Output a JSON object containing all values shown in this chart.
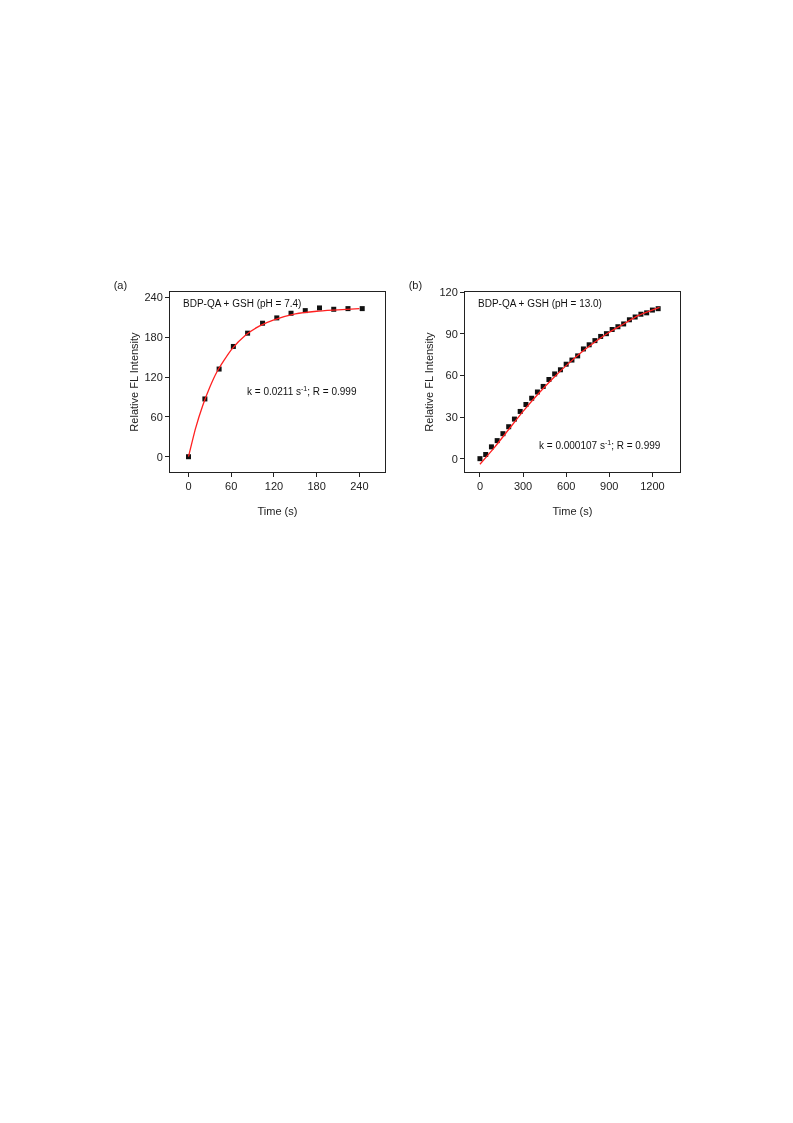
{
  "chart_data": [
    {
      "type": "scatter",
      "title": "(a)",
      "xlabel": "Time (s)",
      "ylabel": "Relative FL Intensity",
      "xlim": [
        -26,
        276
      ],
      "xticks": [
        0,
        60,
        120,
        180,
        240
      ],
      "ylim": [
        -23,
        248
      ],
      "yticks": [
        0,
        60,
        120,
        180,
        240
      ],
      "annotations": [
        "BDP-QA + GSH (pH = 7.4)",
        "k = 0.0211 s$^{-1}$; R = 0.999"
      ],
      "series": [
        {
          "type": "scatter",
          "marker": "square",
          "color": "#111111",
          "x": [
            0,
            23,
            43,
            63,
            83,
            104,
            124,
            144,
            164,
            184,
            204,
            224,
            244
          ],
          "values": [
            0,
            87,
            132,
            166,
            186,
            201,
            209,
            216,
            220,
            224,
            222,
            223,
            223
          ]
        },
        {
          "type": "line",
          "marker": "none",
          "color": "#ff2020",
          "x": [
            0,
            10,
            20,
            30,
            40,
            60,
            80,
            100,
            120,
            150,
            180,
            210,
            240
          ],
          "values": [
            0,
            43,
            77,
            105,
            128,
            161,
            183,
            197,
            206,
            215,
            219,
            221,
            223
          ]
        }
      ]
    },
    {
      "type": "scatter",
      "title": "(b)",
      "xlabel": "Time (s)",
      "ylabel": "Relative FL Intensity",
      "xlim": [
        -104,
        1392
      ],
      "xticks": [
        0,
        300,
        600,
        900,
        1200
      ],
      "ylim": [
        -9.6,
        120
      ],
      "yticks": [
        0,
        30,
        60,
        90,
        120
      ],
      "annotations": [
        "BDP-QA + GSH (pH = 13.0)",
        "k = 0.000107 s$^{-1}$; R = 0.999"
      ],
      "series": [
        {
          "type": "scatter",
          "marker": "square",
          "color": "#111111",
          "x": [
            0,
            40,
            80,
            120,
            160,
            200,
            240,
            280,
            320,
            360,
            400,
            440,
            480,
            520,
            560,
            600,
            640,
            680,
            720,
            760,
            800,
            840,
            880,
            920,
            960,
            1000,
            1040,
            1080,
            1120,
            1160,
            1200,
            1240
          ],
          "values": [
            0,
            3,
            8.5,
            13,
            18,
            23,
            28.5,
            34,
            39,
            43.5,
            48,
            52,
            57,
            61,
            64,
            68,
            71,
            74,
            79,
            82,
            85,
            88,
            90,
            93,
            95,
            97,
            100,
            102,
            104,
            105,
            107,
            108
          ]
        },
        {
          "type": "line",
          "marker": "none",
          "color": "#ff2020",
          "x": [
            0,
            100,
            200,
            300,
            400,
            500,
            600,
            700,
            800,
            900,
            1000,
            1100,
            1250
          ],
          "values": [
            -4,
            8,
            21,
            34,
            46,
            57,
            67,
            76,
            84,
            91,
            97,
            103,
            109
          ]
        }
      ]
    }
  ]
}
